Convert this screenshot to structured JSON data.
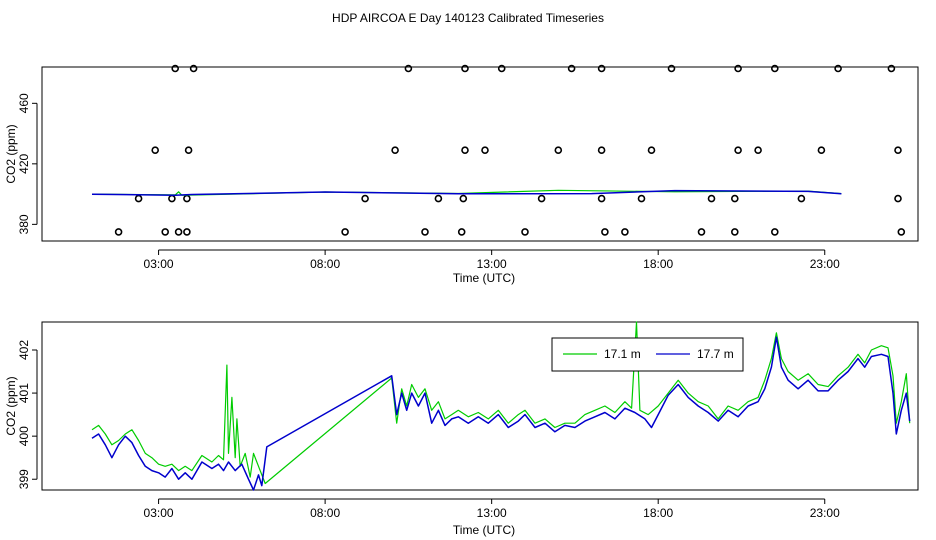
{
  "figure": {
    "title": "HDP AIRCOA E  Day 140123  Calibrated Timeseries"
  },
  "chart_data": [
    {
      "type": "scatter",
      "xlabel": "Time (UTC)",
      "ylabel": "CO2 (ppm)",
      "xlim": [
        -0.5,
        25.8
      ],
      "ylim": [
        369,
        484
      ],
      "x_ticks": [
        3,
        8,
        13,
        18,
        23
      ],
      "x_tick_labels": [
        "03:00",
        "08:00",
        "13:00",
        "18:00",
        "23:00"
      ],
      "y_ticks": [
        380,
        420,
        460
      ],
      "y_tick_labels": [
        "380",
        "420",
        "460"
      ],
      "grid": false,
      "series": [
        {
          "color": "#000000",
          "marker": "open-circle",
          "points": [
            [
              1.8,
              375
            ],
            [
              3.2,
              375
            ],
            [
              3.6,
              375
            ],
            [
              3.85,
              375
            ],
            [
              8.6,
              375
            ],
            [
              11.0,
              375
            ],
            [
              12.1,
              375
            ],
            [
              14.0,
              375
            ],
            [
              16.4,
              375
            ],
            [
              17.0,
              375
            ],
            [
              19.3,
              375
            ],
            [
              20.3,
              375
            ],
            [
              21.5,
              375
            ],
            [
              25.3,
              375
            ],
            [
              2.4,
              397
            ],
            [
              3.4,
              397
            ],
            [
              3.85,
              397
            ],
            [
              9.2,
              397
            ],
            [
              11.4,
              397
            ],
            [
              12.15,
              397
            ],
            [
              14.5,
              397
            ],
            [
              16.3,
              397
            ],
            [
              17.5,
              397
            ],
            [
              19.6,
              397
            ],
            [
              20.3,
              397
            ],
            [
              22.3,
              397
            ],
            [
              25.2,
              397
            ],
            [
              2.9,
              429
            ],
            [
              3.9,
              429
            ],
            [
              10.1,
              429
            ],
            [
              12.2,
              429
            ],
            [
              12.8,
              429
            ],
            [
              15.0,
              429
            ],
            [
              16.3,
              429
            ],
            [
              17.8,
              429
            ],
            [
              20.4,
              429
            ],
            [
              21.0,
              429
            ],
            [
              22.9,
              429
            ],
            [
              25.2,
              429
            ],
            [
              3.5,
              483
            ],
            [
              4.05,
              483
            ],
            [
              10.5,
              483
            ],
            [
              12.2,
              483
            ],
            [
              13.3,
              483
            ],
            [
              15.4,
              483
            ],
            [
              16.3,
              483
            ],
            [
              18.4,
              483
            ],
            [
              20.4,
              483
            ],
            [
              21.5,
              483
            ],
            [
              23.4,
              483
            ],
            [
              25.0,
              483
            ]
          ]
        },
        {
          "color": "#00cc00",
          "line": true,
          "points": [
            [
              1.0,
              400.0
            ],
            [
              3.5,
              399.5
            ],
            [
              3.6,
              401.5
            ],
            [
              3.7,
              399.2
            ],
            [
              8.0,
              401.4
            ],
            [
              12.0,
              400.4
            ],
            [
              15.0,
              402.5
            ],
            [
              18.5,
              401.5
            ],
            [
              22.5,
              402.0
            ],
            [
              23.5,
              400.3
            ]
          ]
        },
        {
          "color": "#0000cc",
          "line": true,
          "points": [
            [
              1.0,
              399.9
            ],
            [
              3.5,
              399.3
            ],
            [
              4.0,
              399.7
            ],
            [
              8.0,
              401.4
            ],
            [
              12.0,
              400.2
            ],
            [
              16.0,
              400.3
            ],
            [
              18.5,
              402.3
            ],
            [
              22.5,
              401.8
            ],
            [
              23.5,
              400.2
            ]
          ]
        }
      ]
    },
    {
      "type": "line",
      "xlabel": "Time (UTC)",
      "ylabel": "CO2 (ppm)",
      "xlim": [
        -0.5,
        25.8
      ],
      "ylim": [
        398.75,
        402.65
      ],
      "x_ticks": [
        3,
        8,
        13,
        18,
        23
      ],
      "x_tick_labels": [
        "03:00",
        "08:00",
        "13:00",
        "18:00",
        "23:00"
      ],
      "y_ticks": [
        399,
        400,
        401,
        402
      ],
      "y_tick_labels": [
        "399",
        "400",
        "401",
        "402"
      ],
      "grid": false,
      "legend": {
        "placement": "top-right",
        "entries": [
          "17.1 m",
          "17.7 m"
        ]
      },
      "series": [
        {
          "name": "17.1 m",
          "color": "#00cc00",
          "points": [
            [
              1.0,
              400.15
            ],
            [
              1.2,
              400.25
            ],
            [
              1.4,
              400.05
            ],
            [
              1.6,
              399.8
            ],
            [
              1.8,
              399.9
            ],
            [
              2.0,
              400.05
            ],
            [
              2.2,
              400.15
            ],
            [
              2.4,
              399.9
            ],
            [
              2.6,
              399.6
            ],
            [
              2.8,
              399.5
            ],
            [
              3.0,
              399.35
            ],
            [
              3.2,
              399.3
            ],
            [
              3.4,
              399.35
            ],
            [
              3.6,
              399.2
            ],
            [
              3.8,
              399.3
            ],
            [
              4.0,
              399.2
            ],
            [
              4.3,
              399.55
            ],
            [
              4.6,
              399.4
            ],
            [
              4.8,
              399.55
            ],
            [
              4.95,
              399.45
            ],
            [
              5.05,
              401.65
            ],
            [
              5.1,
              399.6
            ],
            [
              5.2,
              400.9
            ],
            [
              5.3,
              399.5
            ],
            [
              5.35,
              400.4
            ],
            [
              5.45,
              399.3
            ],
            [
              5.6,
              399.6
            ],
            [
              5.75,
              399.05
            ],
            [
              5.85,
              399.6
            ],
            [
              6.0,
              399.3
            ],
            [
              6.2,
              398.9
            ],
            [
              10.0,
              401.35
            ],
            [
              10.15,
              400.3
            ],
            [
              10.3,
              401.1
            ],
            [
              10.45,
              400.7
            ],
            [
              10.6,
              401.2
            ],
            [
              10.8,
              400.9
            ],
            [
              11.0,
              401.1
            ],
            [
              11.2,
              400.6
            ],
            [
              11.4,
              400.8
            ],
            [
              11.6,
              400.4
            ],
            [
              11.8,
              400.5
            ],
            [
              12.0,
              400.6
            ],
            [
              12.3,
              400.45
            ],
            [
              12.6,
              400.55
            ],
            [
              12.9,
              400.4
            ],
            [
              13.2,
              400.6
            ],
            [
              13.5,
              400.3
            ],
            [
              13.8,
              400.5
            ],
            [
              14.0,
              400.6
            ],
            [
              14.3,
              400.3
            ],
            [
              14.6,
              400.4
            ],
            [
              14.9,
              400.2
            ],
            [
              15.2,
              400.3
            ],
            [
              15.5,
              400.3
            ],
            [
              15.8,
              400.5
            ],
            [
              16.1,
              400.6
            ],
            [
              16.4,
              400.7
            ],
            [
              16.7,
              400.55
            ],
            [
              17.0,
              400.8
            ],
            [
              17.2,
              400.65
            ],
            [
              17.35,
              402.65
            ],
            [
              17.45,
              400.6
            ],
            [
              17.7,
              400.5
            ],
            [
              18.0,
              400.7
            ],
            [
              18.3,
              401.0
            ],
            [
              18.6,
              401.3
            ],
            [
              18.9,
              401.0
            ],
            [
              19.2,
              400.8
            ],
            [
              19.5,
              400.7
            ],
            [
              19.8,
              400.4
            ],
            [
              20.1,
              400.7
            ],
            [
              20.4,
              400.6
            ],
            [
              20.7,
              400.8
            ],
            [
              21.0,
              400.9
            ],
            [
              21.2,
              401.3
            ],
            [
              21.4,
              401.8
            ],
            [
              21.55,
              402.4
            ],
            [
              21.7,
              401.8
            ],
            [
              21.9,
              401.5
            ],
            [
              22.2,
              401.3
            ],
            [
              22.5,
              401.45
            ],
            [
              22.8,
              401.2
            ],
            [
              23.1,
              401.15
            ],
            [
              23.4,
              401.4
            ],
            [
              23.7,
              401.6
            ],
            [
              24.0,
              401.9
            ],
            [
              24.2,
              401.7
            ],
            [
              24.4,
              402.0
            ],
            [
              24.7,
              402.1
            ],
            [
              24.9,
              402.05
            ],
            [
              25.05,
              401.4
            ],
            [
              25.15,
              400.3
            ],
            [
              25.3,
              400.8
            ],
            [
              25.45,
              401.45
            ],
            [
              25.55,
              400.3
            ]
          ]
        },
        {
          "name": "17.7 m",
          "color": "#0000cc",
          "points": [
            [
              1.0,
              399.95
            ],
            [
              1.2,
              400.05
            ],
            [
              1.4,
              399.8
            ],
            [
              1.6,
              399.5
            ],
            [
              1.8,
              399.8
            ],
            [
              2.0,
              400.0
            ],
            [
              2.2,
              399.85
            ],
            [
              2.4,
              399.55
            ],
            [
              2.6,
              399.3
            ],
            [
              2.8,
              399.2
            ],
            [
              3.0,
              399.15
            ],
            [
              3.2,
              399.05
            ],
            [
              3.4,
              399.25
            ],
            [
              3.6,
              399.0
            ],
            [
              3.8,
              399.15
            ],
            [
              4.0,
              399.0
            ],
            [
              4.3,
              399.4
            ],
            [
              4.6,
              399.25
            ],
            [
              4.8,
              399.35
            ],
            [
              4.95,
              399.2
            ],
            [
              5.1,
              399.4
            ],
            [
              5.3,
              399.2
            ],
            [
              5.5,
              399.35
            ],
            [
              5.7,
              399.0
            ],
            [
              5.85,
              398.75
            ],
            [
              6.0,
              399.1
            ],
            [
              6.1,
              398.85
            ],
            [
              6.25,
              399.75
            ],
            [
              10.0,
              401.4
            ],
            [
              10.15,
              400.5
            ],
            [
              10.3,
              401.0
            ],
            [
              10.45,
              400.6
            ],
            [
              10.6,
              401.0
            ],
            [
              10.8,
              400.7
            ],
            [
              11.0,
              401.0
            ],
            [
              11.2,
              400.3
            ],
            [
              11.4,
              400.6
            ],
            [
              11.6,
              400.25
            ],
            [
              11.8,
              400.4
            ],
            [
              12.0,
              400.45
            ],
            [
              12.3,
              400.3
            ],
            [
              12.6,
              400.45
            ],
            [
              12.9,
              400.3
            ],
            [
              13.2,
              400.5
            ],
            [
              13.5,
              400.2
            ],
            [
              13.8,
              400.35
            ],
            [
              14.0,
              400.5
            ],
            [
              14.3,
              400.2
            ],
            [
              14.6,
              400.3
            ],
            [
              14.9,
              400.1
            ],
            [
              15.2,
              400.25
            ],
            [
              15.5,
              400.2
            ],
            [
              15.8,
              400.35
            ],
            [
              16.1,
              400.45
            ],
            [
              16.4,
              400.55
            ],
            [
              16.7,
              400.4
            ],
            [
              17.0,
              400.65
            ],
            [
              17.3,
              400.55
            ],
            [
              17.6,
              400.4
            ],
            [
              17.8,
              400.2
            ],
            [
              18.0,
              400.5
            ],
            [
              18.3,
              400.95
            ],
            [
              18.6,
              401.2
            ],
            [
              18.9,
              400.9
            ],
            [
              19.2,
              400.7
            ],
            [
              19.5,
              400.55
            ],
            [
              19.8,
              400.35
            ],
            [
              20.1,
              400.6
            ],
            [
              20.4,
              400.45
            ],
            [
              20.7,
              400.7
            ],
            [
              21.0,
              400.8
            ],
            [
              21.2,
              401.1
            ],
            [
              21.4,
              401.6
            ],
            [
              21.55,
              402.3
            ],
            [
              21.7,
              401.6
            ],
            [
              21.9,
              401.3
            ],
            [
              22.2,
              401.1
            ],
            [
              22.5,
              401.3
            ],
            [
              22.8,
              401.05
            ],
            [
              23.1,
              401.05
            ],
            [
              23.4,
              401.3
            ],
            [
              23.7,
              401.5
            ],
            [
              24.0,
              401.8
            ],
            [
              24.2,
              401.6
            ],
            [
              24.4,
              401.85
            ],
            [
              24.7,
              401.9
            ],
            [
              24.9,
              401.85
            ],
            [
              25.05,
              401.0
            ],
            [
              25.15,
              400.05
            ],
            [
              25.3,
              400.6
            ],
            [
              25.45,
              401.0
            ],
            [
              25.55,
              400.35
            ]
          ]
        }
      ]
    }
  ]
}
